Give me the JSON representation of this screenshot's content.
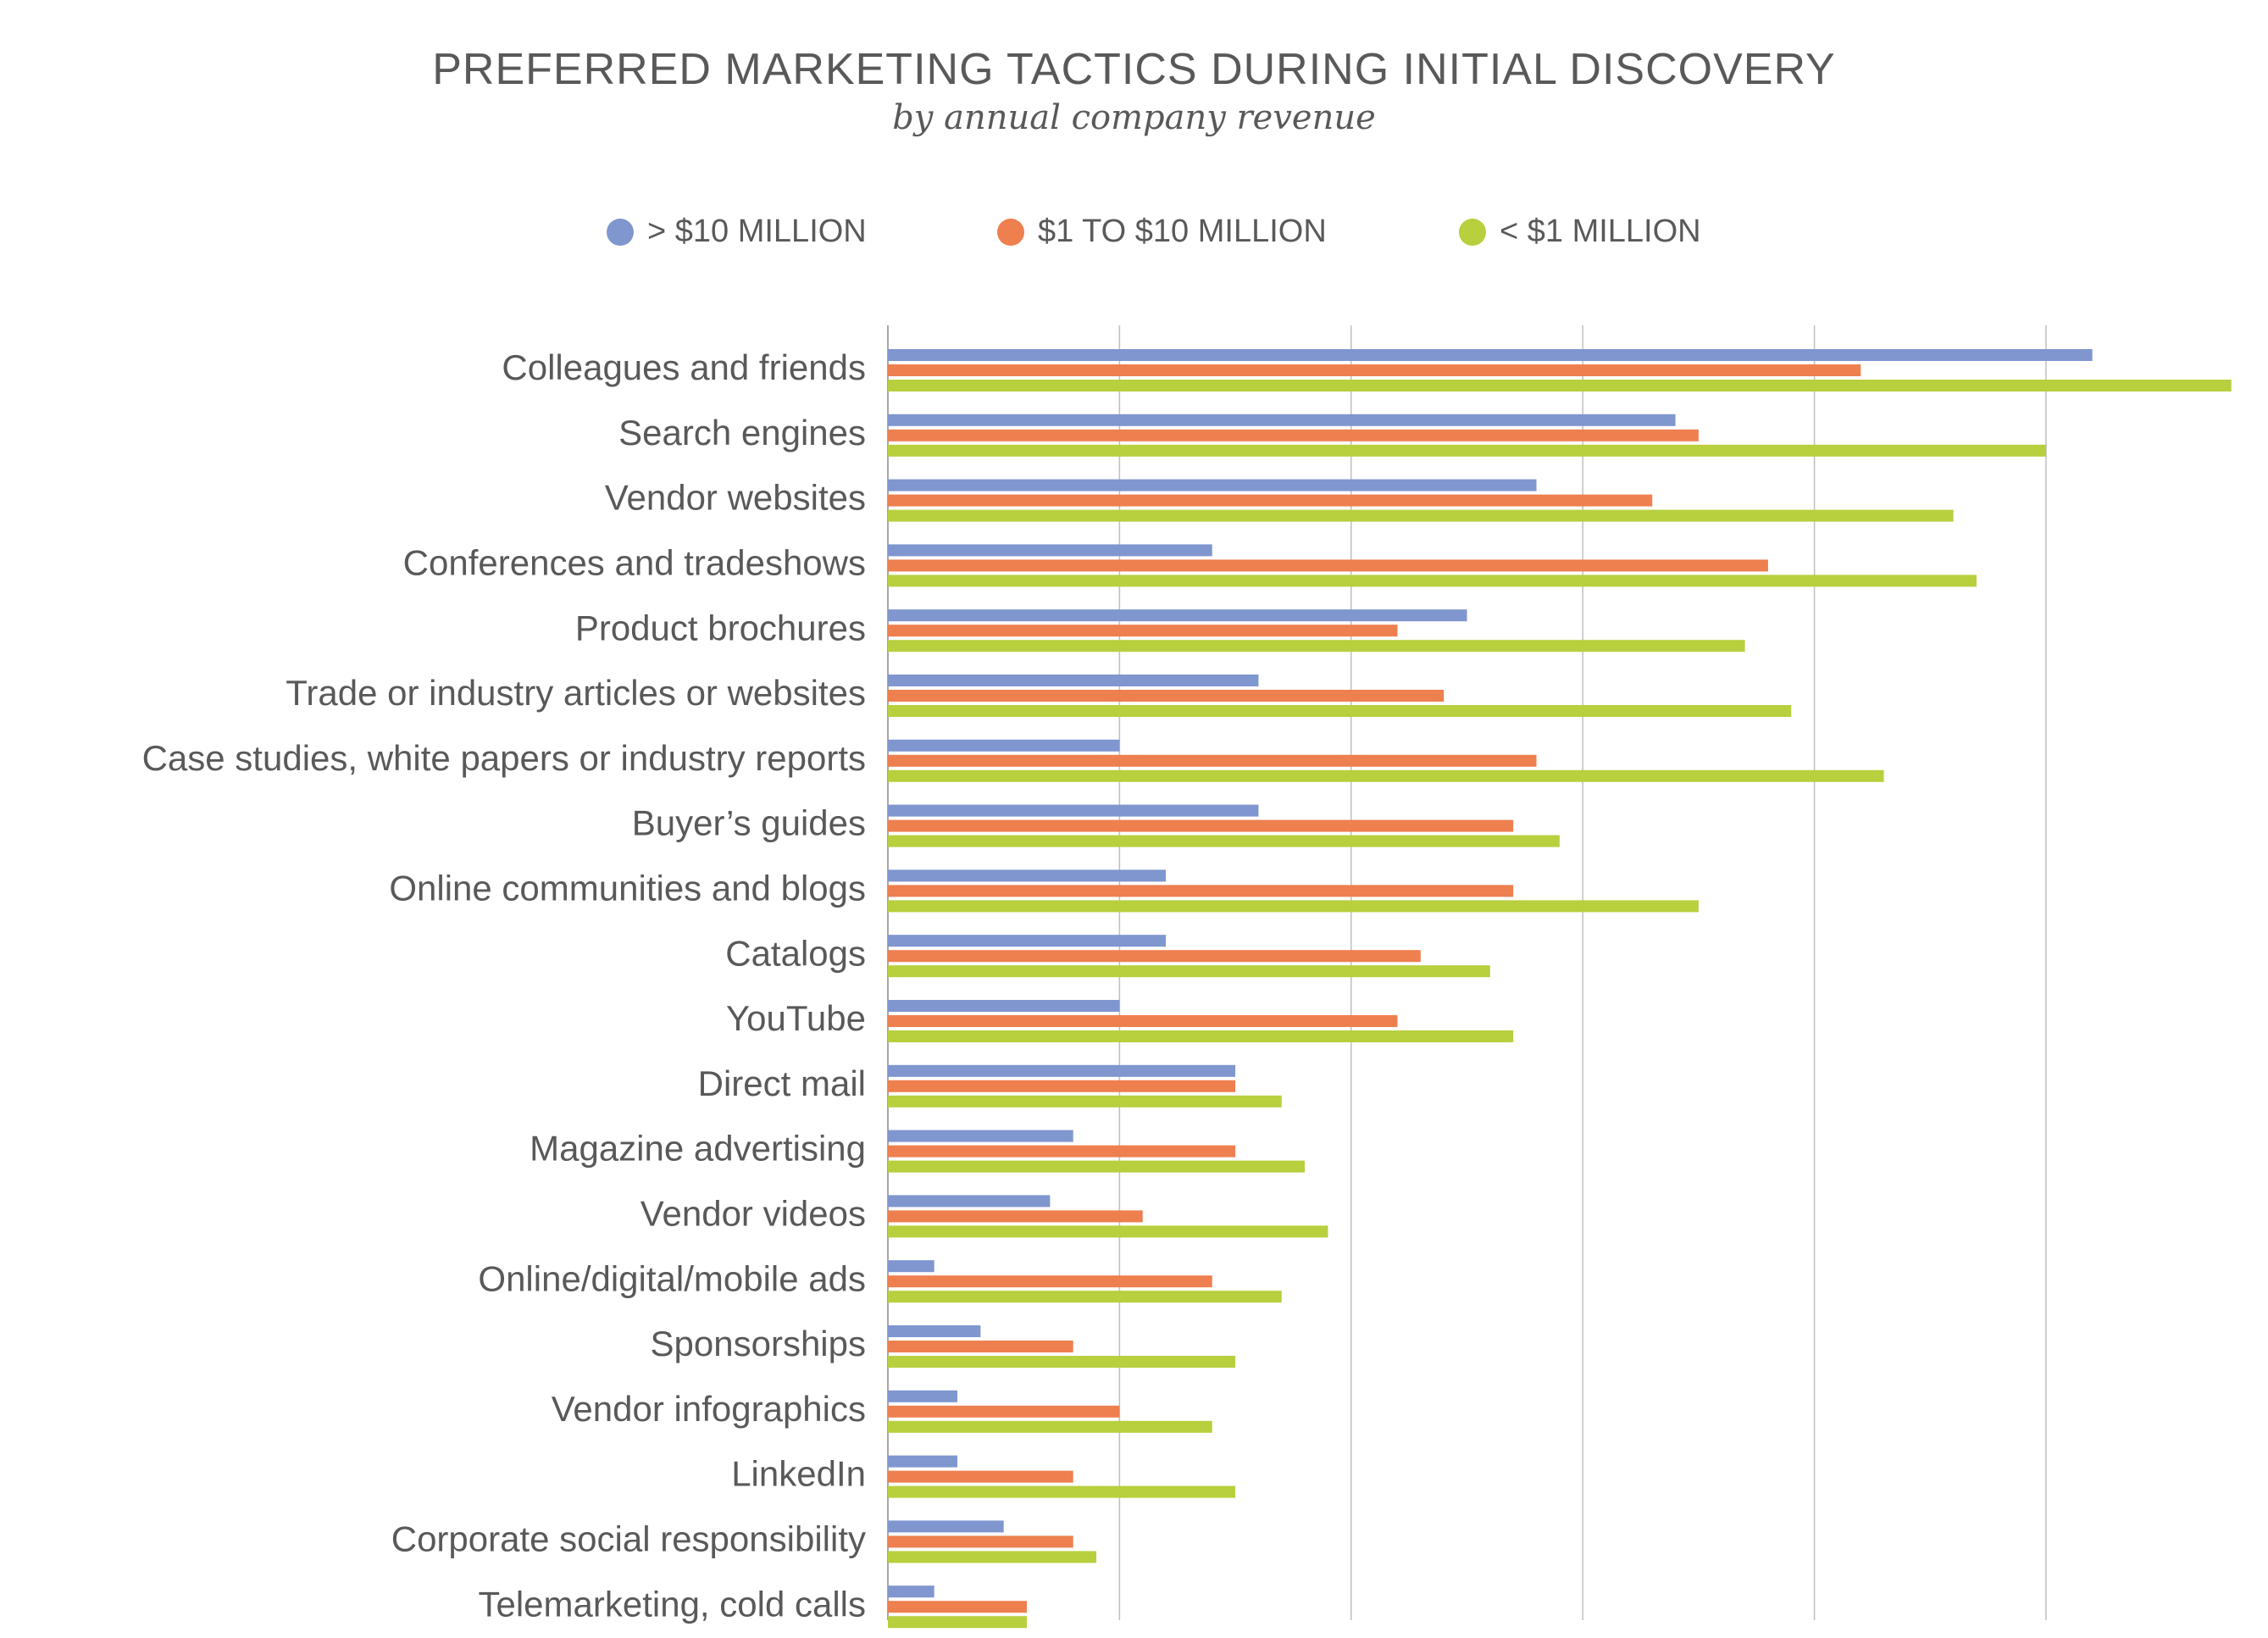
{
  "chart_data": {
    "type": "bar",
    "orientation": "horizontal",
    "title": "PREFERRED MARKETING TACTICS DURING INITIAL DISCOVERY",
    "subtitle": "by annual company revenue",
    "xlabel": "",
    "ylabel": "",
    "xlim": [
      0,
      58
    ],
    "grid": true,
    "legend_position": "top",
    "categories": [
      "Colleagues and friends",
      "Search engines",
      "Vendor websites",
      "Conferences and tradeshows",
      "Product brochures",
      "Trade or industry articles or websites",
      "Case studies, white papers or industry reports",
      "Buyer’s guides",
      "Online communities and blogs",
      "Catalogs",
      "YouTube",
      "Direct mail",
      "Magazine advertising",
      "Vendor videos",
      "Online/digital/mobile ads",
      "Sponsorships",
      "Vendor infographics",
      "LinkedIn",
      "Corporate social responsibility",
      "Telemarketing, cold calls"
    ],
    "series": [
      {
        "name": "> $10 MILLION",
        "color": "#7F96CF",
        "values": [
          52,
          34,
          28,
          14,
          25,
          16,
          10,
          16,
          12,
          12,
          10,
          15,
          8,
          7,
          2,
          4,
          3,
          3,
          5,
          2
        ]
      },
      {
        "name": "$1 TO $10 MILLION",
        "color": "#EE7F4F",
        "values": [
          42,
          35,
          33,
          38,
          22,
          24,
          28,
          27,
          27,
          23,
          22,
          15,
          15,
          11,
          14,
          8,
          10,
          8,
          8,
          6
        ]
      },
      {
        "name": "< $1 MILLION",
        "color": "#B8CF3E",
        "values": [
          58,
          50,
          46,
          47,
          37,
          39,
          43,
          29,
          35,
          26,
          27,
          17,
          18,
          19,
          17,
          15,
          14,
          15,
          9,
          6
        ]
      }
    ]
  }
}
